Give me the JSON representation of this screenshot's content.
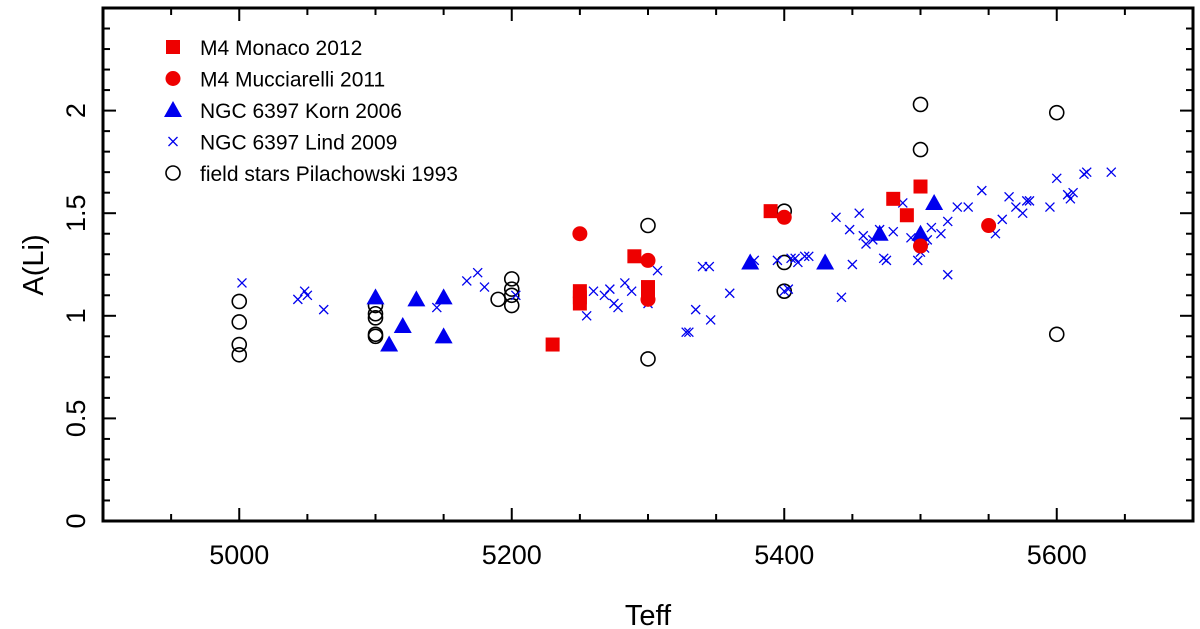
{
  "chart_data": {
    "type": "scatter",
    "title": "",
    "xlabel": "Teff",
    "ylabel": "A(Li)",
    "xlim": [
      4900,
      5700
    ],
    "ylim": [
      0,
      2.5
    ],
    "xticks": [
      5000,
      5200,
      5400,
      5600
    ],
    "yticks": [
      0,
      0.5,
      1,
      1.5,
      2
    ],
    "xtick_labels": [
      "5000",
      "5200",
      "5400",
      "5600"
    ],
    "ytick_labels": [
      "0",
      "0.5",
      "1",
      "1.5",
      "2"
    ],
    "grid": false,
    "legend_position": "top-left",
    "series": [
      {
        "name": "M4 Monaco 2012",
        "marker": "square-filled",
        "color": "#ee0000",
        "points": [
          [
            5230,
            0.86
          ],
          [
            5250,
            1.06
          ],
          [
            5250,
            1.09
          ],
          [
            5250,
            1.12
          ],
          [
            5290,
            1.29
          ],
          [
            5300,
            1.1
          ],
          [
            5300,
            1.14
          ],
          [
            5390,
            1.51
          ],
          [
            5480,
            1.57
          ],
          [
            5490,
            1.49
          ],
          [
            5500,
            1.63
          ]
        ]
      },
      {
        "name": "M4 Mucciarelli 2011",
        "marker": "circle-filled",
        "color": "#ee0000",
        "points": [
          [
            5250,
            1.4
          ],
          [
            5300,
            1.27
          ],
          [
            5300,
            1.08
          ],
          [
            5400,
            1.48
          ],
          [
            5500,
            1.34
          ],
          [
            5550,
            1.44
          ]
        ]
      },
      {
        "name": "NGC 6397   Korn 2006",
        "marker": "triangle-filled",
        "color": "#0000ee",
        "points": [
          [
            5100,
            1.09
          ],
          [
            5110,
            0.86
          ],
          [
            5120,
            0.95
          ],
          [
            5130,
            1.08
          ],
          [
            5150,
            1.09
          ],
          [
            5150,
            0.9
          ],
          [
            5375,
            1.26
          ],
          [
            5430,
            1.26
          ],
          [
            5470,
            1.4
          ],
          [
            5500,
            1.4
          ],
          [
            5510,
            1.55
          ]
        ]
      },
      {
        "name": "NGC 6397   Lind 2009",
        "marker": "cross",
        "color": "#0000ee",
        "points": [
          [
            5002,
            1.16
          ],
          [
            5043,
            1.08
          ],
          [
            5048,
            1.12
          ],
          [
            5050,
            1.1
          ],
          [
            5062,
            1.03
          ],
          [
            5145,
            1.04
          ],
          [
            5167,
            1.17
          ],
          [
            5175,
            1.21
          ],
          [
            5180,
            1.14
          ],
          [
            5203,
            1.1
          ],
          [
            5255,
            1.0
          ],
          [
            5260,
            1.12
          ],
          [
            5268,
            1.1
          ],
          [
            5272,
            1.13
          ],
          [
            5275,
            1.06
          ],
          [
            5278,
            1.04
          ],
          [
            5283,
            1.16
          ],
          [
            5288,
            1.12
          ],
          [
            5300,
            1.06
          ],
          [
            5307,
            1.22
          ],
          [
            5328,
            0.92
          ],
          [
            5330,
            0.92
          ],
          [
            5335,
            1.03
          ],
          [
            5340,
            1.24
          ],
          [
            5345,
            1.24
          ],
          [
            5346,
            0.98
          ],
          [
            5360,
            1.11
          ],
          [
            5378,
            1.27
          ],
          [
            5395,
            1.27
          ],
          [
            5400,
            1.12
          ],
          [
            5403,
            1.13
          ],
          [
            5405,
            1.28
          ],
          [
            5408,
            1.28
          ],
          [
            5410,
            1.26
          ],
          [
            5415,
            1.29
          ],
          [
            5418,
            1.29
          ],
          [
            5438,
            1.48
          ],
          [
            5442,
            1.09
          ],
          [
            5448,
            1.42
          ],
          [
            5450,
            1.25
          ],
          [
            5455,
            1.5
          ],
          [
            5458,
            1.39
          ],
          [
            5460,
            1.35
          ],
          [
            5465,
            1.37
          ],
          [
            5470,
            1.42
          ],
          [
            5473,
            1.28
          ],
          [
            5475,
            1.27
          ],
          [
            5480,
            1.41
          ],
          [
            5487,
            1.55
          ],
          [
            5493,
            1.38
          ],
          [
            5498,
            1.27
          ],
          [
            5500,
            1.31
          ],
          [
            5503,
            1.33
          ],
          [
            5505,
            1.37
          ],
          [
            5508,
            1.43
          ],
          [
            5515,
            1.4
          ],
          [
            5520,
            1.2
          ],
          [
            5520,
            1.46
          ],
          [
            5527,
            1.53
          ],
          [
            5535,
            1.53
          ],
          [
            5545,
            1.61
          ],
          [
            5555,
            1.4
          ],
          [
            5560,
            1.47
          ],
          [
            5565,
            1.58
          ],
          [
            5570,
            1.53
          ],
          [
            5575,
            1.5
          ],
          [
            5578,
            1.56
          ],
          [
            5580,
            1.56
          ],
          [
            5595,
            1.53
          ],
          [
            5600,
            1.67
          ],
          [
            5608,
            1.59
          ],
          [
            5610,
            1.57
          ],
          [
            5612,
            1.6
          ],
          [
            5620,
            1.69
          ],
          [
            5622,
            1.7
          ],
          [
            5640,
            1.7
          ]
        ]
      },
      {
        "name": "field stars   Pilachowski 1993",
        "marker": "circle-open",
        "color": "#000000",
        "points": [
          [
            5000,
            1.07
          ],
          [
            5000,
            0.97
          ],
          [
            5000,
            0.86
          ],
          [
            5000,
            0.81
          ],
          [
            5100,
            1.05
          ],
          [
            5100,
            1.01
          ],
          [
            5100,
            0.99
          ],
          [
            5100,
            0.91
          ],
          [
            5100,
            0.9
          ],
          [
            5190,
            1.08
          ],
          [
            5200,
            1.18
          ],
          [
            5200,
            1.13
          ],
          [
            5200,
            1.1
          ],
          [
            5200,
            1.05
          ],
          [
            5300,
            1.44
          ],
          [
            5300,
            0.79
          ],
          [
            5400,
            1.51
          ],
          [
            5400,
            1.26
          ],
          [
            5400,
            1.12
          ],
          [
            5500,
            2.03
          ],
          [
            5500,
            1.81
          ],
          [
            5600,
            1.99
          ],
          [
            5600,
            0.91
          ]
        ]
      }
    ]
  }
}
